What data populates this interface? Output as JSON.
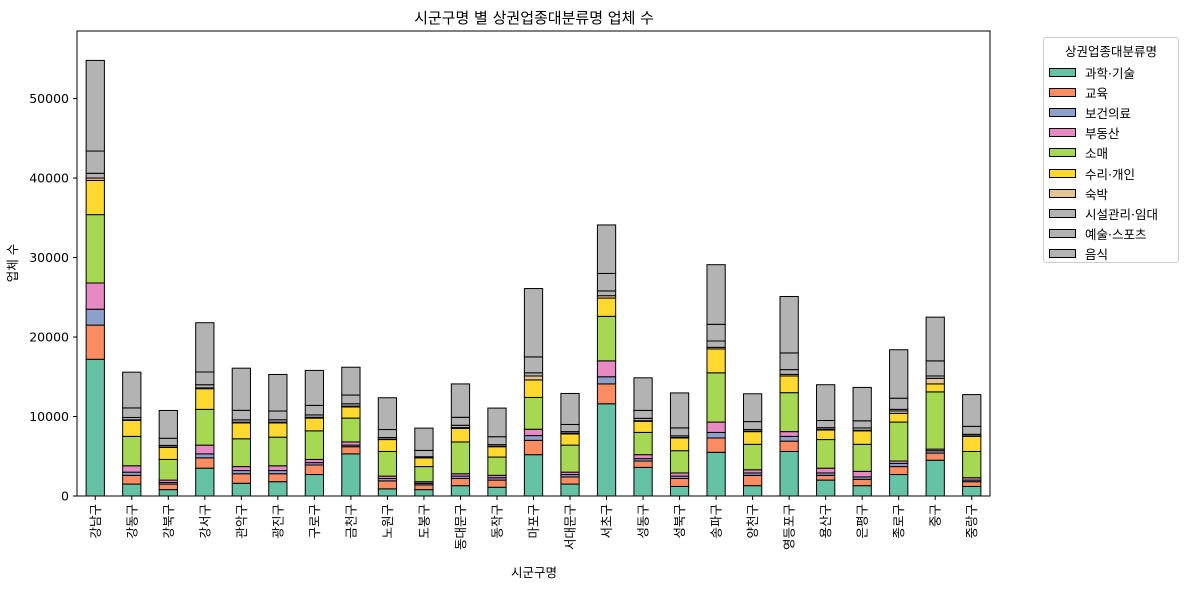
{
  "chart_data": {
    "type": "bar",
    "stacked": true,
    "title": "시군구명 별 상권업종대분류명 업체 수",
    "xlabel": "시군구명",
    "ylabel": "업체 수",
    "ylim": [
      0,
      58500
    ],
    "yticks": [
      0,
      10000,
      20000,
      30000,
      40000,
      50000
    ],
    "ytick_labels": [
      "0",
      "10000",
      "20000",
      "30000",
      "40000",
      "50000"
    ],
    "grid": false,
    "legend_title": "상권업종대분류명",
    "legend_position": "outside-right",
    "categories": [
      "강남구",
      "강동구",
      "강북구",
      "강서구",
      "관악구",
      "광진구",
      "구로구",
      "금천구",
      "노원구",
      "도봉구",
      "동대문구",
      "동작구",
      "마포구",
      "서대문구",
      "서초구",
      "성동구",
      "성북구",
      "송파구",
      "양천구",
      "영등포구",
      "용산구",
      "은평구",
      "종로구",
      "중구",
      "중랑구"
    ],
    "series": [
      {
        "name": "과학·기술",
        "color": "#66c2a5",
        "values": [
          17200,
          1500,
          800,
          3500,
          1600,
          1800,
          2700,
          5300,
          900,
          800,
          1300,
          1100,
          5200,
          1500,
          11600,
          3600,
          1200,
          5500,
          1300,
          5600,
          2000,
          1300,
          2700,
          4500,
          1200
        ]
      },
      {
        "name": "교육",
        "color": "#fc8d62",
        "values": [
          4300,
          1100,
          700,
          1300,
          1200,
          1000,
          1200,
          900,
          1000,
          600,
          900,
          900,
          1800,
          900,
          2500,
          800,
          1000,
          1800,
          1300,
          1300,
          600,
          800,
          1000,
          900,
          600
        ]
      },
      {
        "name": "보건의료",
        "color": "#8da0cb",
        "values": [
          2000,
          400,
          200,
          500,
          400,
          400,
          300,
          200,
          300,
          200,
          300,
          300,
          600,
          300,
          900,
          300,
          300,
          700,
          300,
          600,
          300,
          300,
          400,
          300,
          200
        ]
      },
      {
        "name": "부동산",
        "color": "#e78ac3",
        "values": [
          3300,
          800,
          300,
          1100,
          500,
          600,
          400,
          400,
          300,
          200,
          300,
          300,
          800,
          300,
          2000,
          500,
          400,
          1300,
          400,
          600,
          600,
          700,
          300,
          200,
          300
        ]
      },
      {
        "name": "소매",
        "color": "#a6d854",
        "values": [
          8600,
          3700,
          2600,
          4500,
          3500,
          3600,
          3600,
          3000,
          3100,
          1900,
          4000,
          2300,
          4000,
          3400,
          5600,
          2800,
          2800,
          6200,
          3200,
          4900,
          3600,
          3400,
          4900,
          7200,
          3300
        ]
      },
      {
        "name": "수리·개인",
        "color": "#ffd92f",
        "values": [
          4300,
          2000,
          1500,
          2600,
          2000,
          1800,
          1600,
          1400,
          1500,
          1100,
          1700,
          1300,
          2200,
          1400,
          2300,
          1400,
          1600,
          3000,
          1600,
          2100,
          1200,
          1700,
          1100,
          1000,
          1900
        ]
      },
      {
        "name": "숙박",
        "color": "#e5c494",
        "values": [
          300,
          80,
          60,
          100,
          80,
          90,
          100,
          100,
          60,
          40,
          100,
          60,
          500,
          100,
          300,
          70,
          70,
          200,
          60,
          200,
          100,
          60,
          300,
          700,
          60
        ]
      },
      {
        "name": "시설관리·임대",
        "color": "#b3b3b3",
        "values": [
          600,
          300,
          200,
          400,
          300,
          300,
          300,
          300,
          200,
          100,
          300,
          200,
          400,
          200,
          600,
          300,
          200,
          800,
          200,
          600,
          200,
          300,
          200,
          300,
          200
        ]
      },
      {
        "name": "예술·스포츠",
        "color": "#b3b3b3",
        "values": [
          2800,
          1200,
          900,
          1600,
          1200,
          1100,
          1200,
          1100,
          1000,
          800,
          1000,
          1000,
          2000,
          900,
          2200,
          1000,
          1000,
          2100,
          1000,
          2100,
          900,
          900,
          1400,
          1900,
          1000
        ]
      },
      {
        "name": "음식",
        "color": "#b3b3b3",
        "values": [
          11400,
          4500,
          3500,
          6200,
          5300,
          4600,
          4400,
          3500,
          4000,
          2800,
          4200,
          3600,
          8600,
          3900,
          6100,
          4100,
          4400,
          7500,
          3500,
          7100,
          4500,
          4200,
          6100,
          5500,
          4000
        ]
      }
    ]
  }
}
